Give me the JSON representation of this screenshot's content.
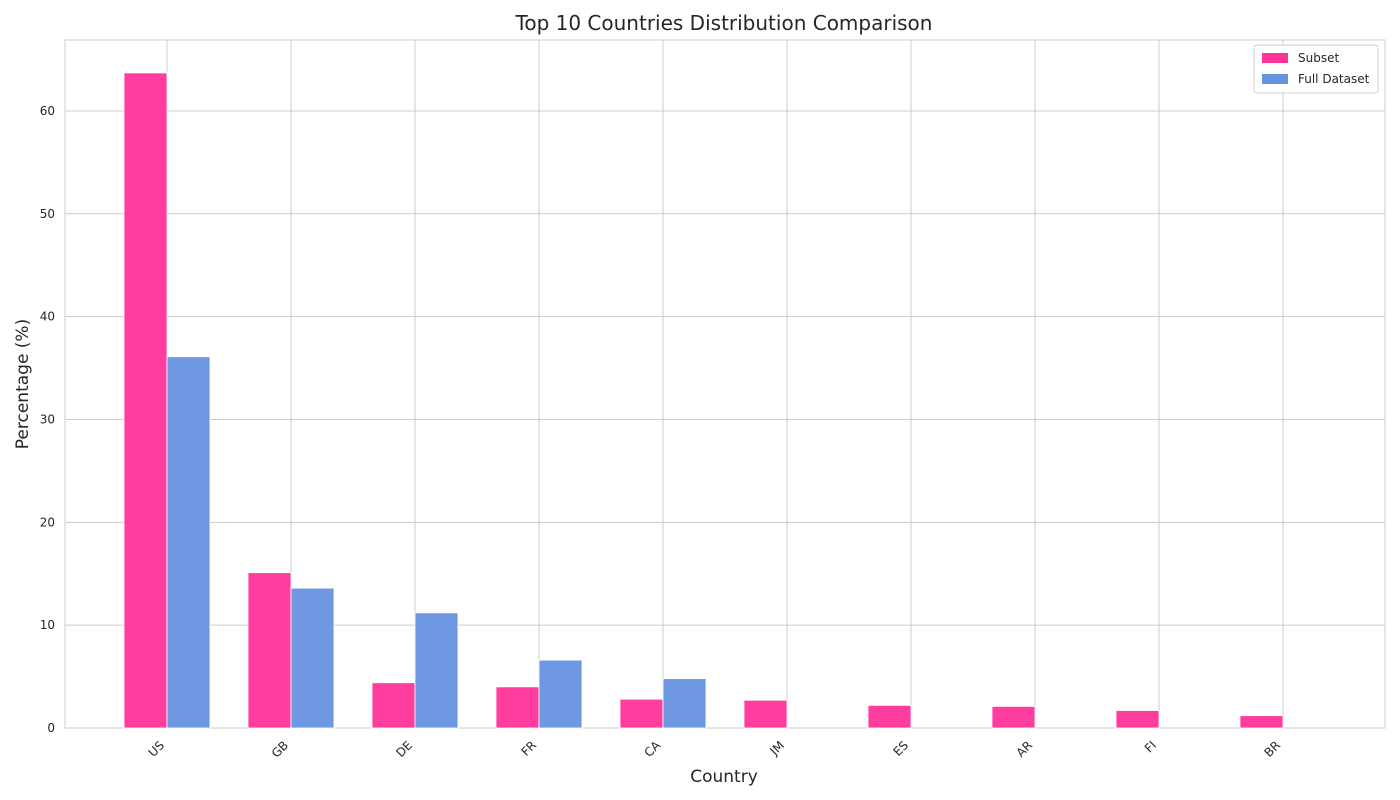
{
  "chart_data": {
    "type": "bar",
    "title": "Top 10 Countries Distribution Comparison",
    "xlabel": "Country",
    "ylabel": "Percentage (%)",
    "categories": [
      "US",
      "GB",
      "DE",
      "FR",
      "CA",
      "JM",
      "ES",
      "AR",
      "FI",
      "BR"
    ],
    "series": [
      {
        "name": "Subset",
        "color": "#ff3399",
        "values": [
          63.7,
          15.1,
          4.4,
          4.0,
          2.8,
          2.7,
          2.2,
          2.1,
          1.7,
          1.2
        ]
      },
      {
        "name": "Full Dataset",
        "color": "#6693e0",
        "values": [
          36.1,
          13.6,
          11.2,
          6.6,
          4.8,
          0,
          0,
          0,
          0,
          0
        ]
      }
    ],
    "ylim": [
      0,
      66.9
    ],
    "yticks": [
      0,
      10,
      20,
      30,
      40,
      50,
      60
    ],
    "grid": true,
    "legend_position": "top-right"
  }
}
